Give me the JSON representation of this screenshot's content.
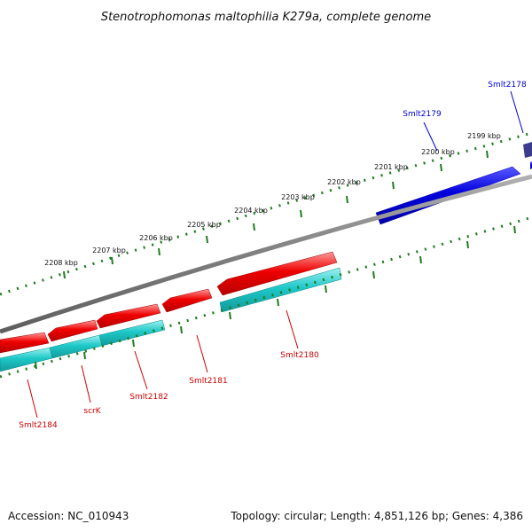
{
  "title": "Stenotrophomonas maltophilia K279a, complete genome",
  "footer": {
    "accession": "Accession: NC_010943",
    "stats": "Topology: circular; Length: 4,851,126 bp; Genes: 4,386"
  },
  "colors": {
    "backbone": "#7f7f7f",
    "ticks": "#1e7b1e",
    "forward_gene": "#0000dd",
    "reverse_gene": "#ee0000",
    "cds": "#1ec8c8",
    "forward_label": "#0000cc",
    "reverse_label": "#cc0000",
    "partial_gene": "#3c3c8c"
  },
  "outer_kbp_labels": [
    "2208 kbp",
    "2207 kbp",
    "2206 kbp",
    "2205 kbp",
    "2204 kbp",
    "2203 kbp",
    "2202 kbp",
    "2201 kbp",
    "2200 kbp",
    "2199 kbp"
  ],
  "forward_genes": [
    {
      "label": "Smlt2179",
      "name": "gene-smlt2179"
    },
    {
      "label": "Smlt2178",
      "name": "gene-smlt2178"
    }
  ],
  "reverse_genes": [
    {
      "label": "Smlt2180",
      "name": "gene-smlt2180"
    },
    {
      "label": "Smlt2181",
      "name": "gene-smlt2181"
    },
    {
      "label": "Smlt2182",
      "name": "gene-smlt2182"
    },
    {
      "label": "scrK",
      "name": "gene-scrk"
    },
    {
      "label": "Smlt2184",
      "name": "gene-smlt2184"
    }
  ]
}
